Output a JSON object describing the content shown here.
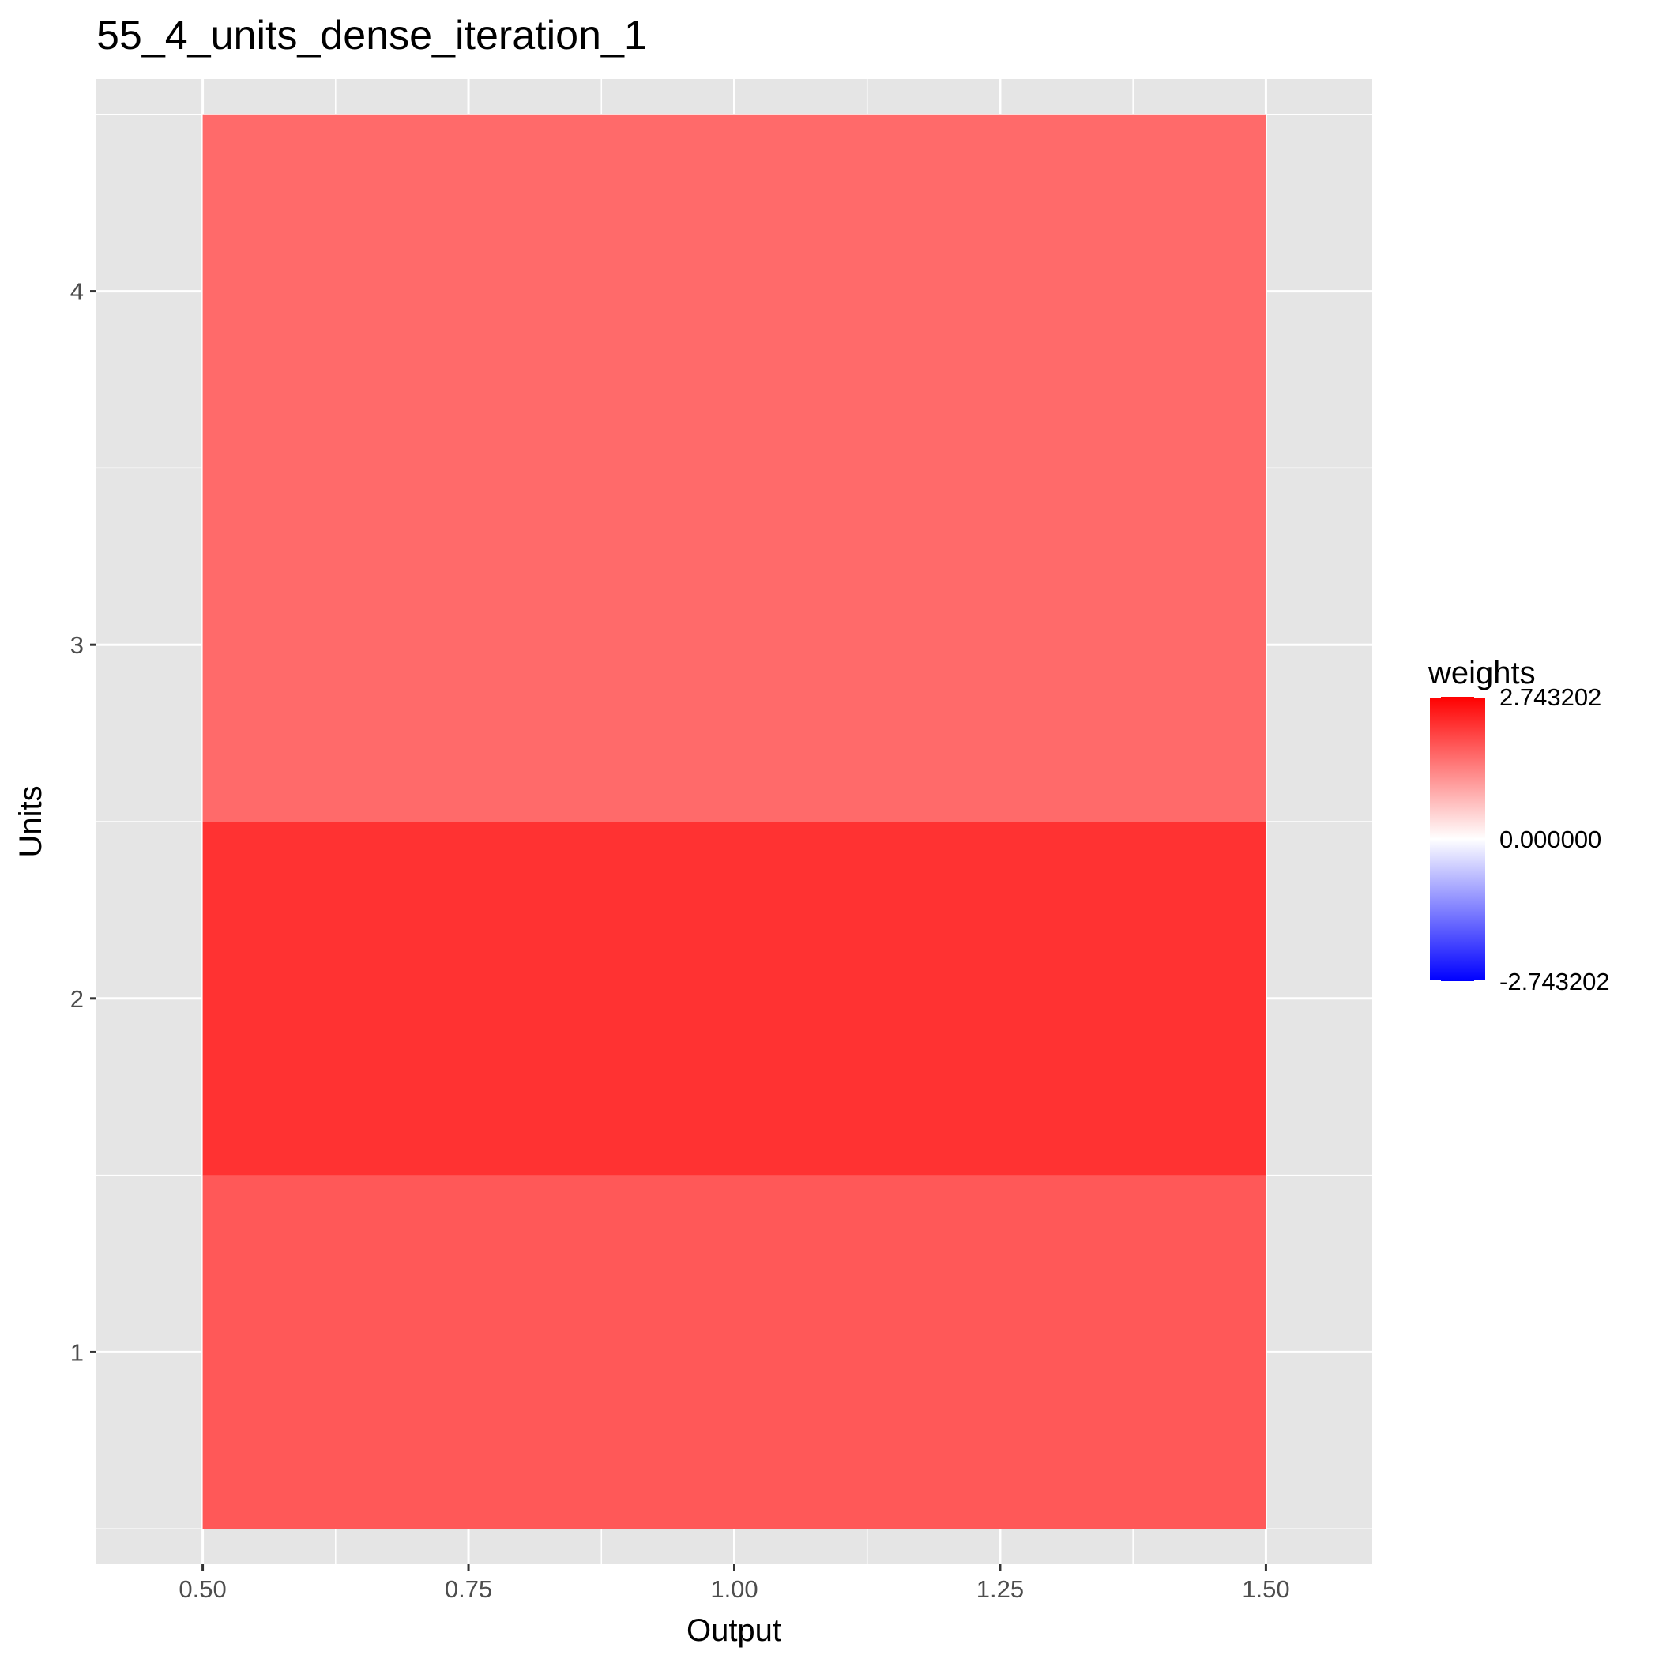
{
  "chart_data": {
    "type": "heatmap",
    "title": "55_4_units_dense_iteration_1",
    "xlabel": "Output",
    "ylabel": "Units",
    "xlim": [
      0.4,
      1.6
    ],
    "ylim": [
      0.4,
      4.6
    ],
    "x_ticks": [
      "0.50",
      "0.75",
      "1.00",
      "1.25",
      "1.50"
    ],
    "x_tick_values": [
      0.5,
      0.75,
      1.0,
      1.25,
      1.5
    ],
    "y_ticks": [
      "1",
      "2",
      "3",
      "4"
    ],
    "y_tick_values": [
      1,
      2,
      3,
      4
    ],
    "grid": true,
    "cells": [
      {
        "output": 1,
        "unit": 1,
        "weight": 1.8
      },
      {
        "output": 1,
        "unit": 2,
        "weight": 2.2
      },
      {
        "output": 1,
        "unit": 3,
        "weight": 1.6
      },
      {
        "output": 1,
        "unit": 4,
        "weight": 1.6
      }
    ],
    "legend": {
      "title": "weights",
      "position": "right",
      "labels": [
        "2.743202",
        "0.000000",
        "-2.743202"
      ],
      "values": [
        2.743202,
        0.0,
        -2.743202
      ],
      "colors": {
        "high": "#ff0000",
        "mid": "#ffffff",
        "low": "#0000ff"
      }
    },
    "colors": {
      "panel": "#e5e5e5",
      "grid": "#ffffff"
    }
  }
}
